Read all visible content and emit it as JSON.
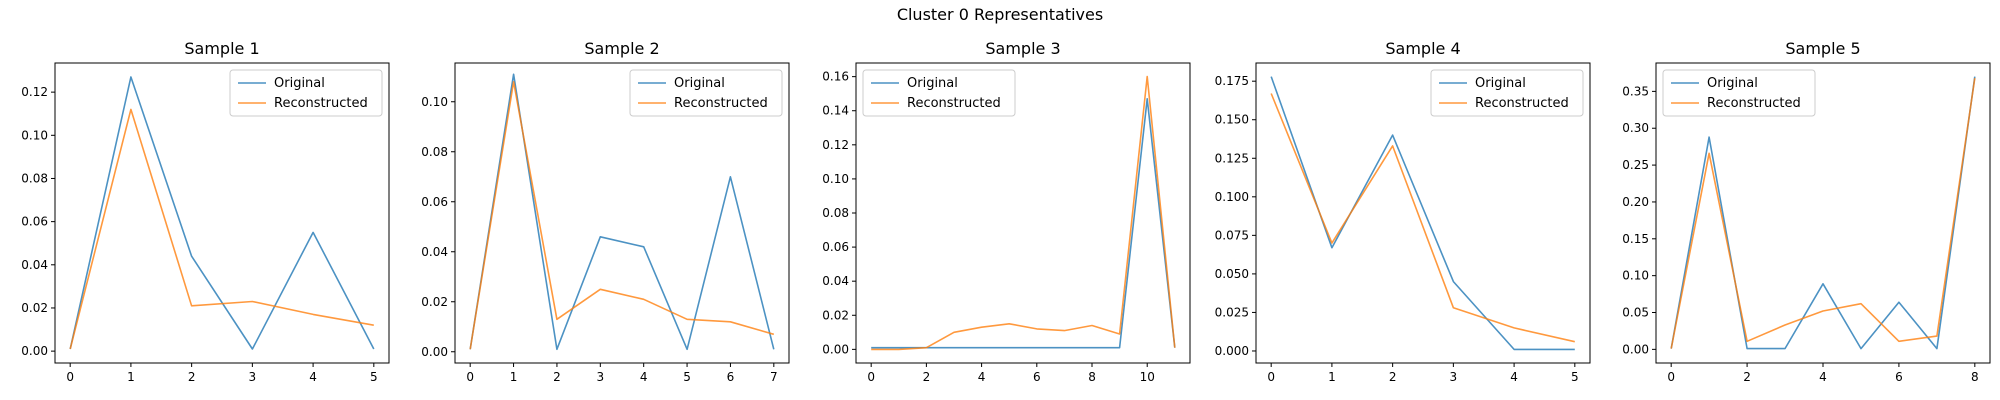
{
  "figure": {
    "title": "Cluster 0 Representatives"
  },
  "colors": {
    "original": "#1f77b4",
    "reconstructed": "#ff7f0e"
  },
  "chart_data": [
    {
      "type": "line",
      "title": "Sample 1",
      "x": [
        0,
        1,
        2,
        3,
        4,
        5
      ],
      "xticks": [
        "0",
        "1",
        "2",
        "3",
        "4",
        "5"
      ],
      "xlim": [
        -0.25,
        5.25
      ],
      "ylim": [
        -0.0055,
        0.1335
      ],
      "yticks": [
        "0.00",
        "0.02",
        "0.04",
        "0.06",
        "0.08",
        "0.10",
        "0.12"
      ],
      "ytick_values": [
        0,
        0.02,
        0.04,
        0.06,
        0.08,
        0.1,
        0.12
      ],
      "legend": "upper-right",
      "series": [
        {
          "name": "Original",
          "values": [
            0.001,
            0.127,
            0.044,
            0.001,
            0.055,
            0.001
          ]
        },
        {
          "name": "Reconstructed",
          "values": [
            0.001,
            0.112,
            0.021,
            0.023,
            0.017,
            0.012
          ]
        }
      ]
    },
    {
      "type": "line",
      "title": "Sample 2",
      "x": [
        0,
        1,
        2,
        3,
        4,
        5,
        6,
        7
      ],
      "xticks": [
        "0",
        "1",
        "2",
        "3",
        "4",
        "5",
        "6",
        "7"
      ],
      "xlim": [
        -0.35,
        7.35
      ],
      "ylim": [
        -0.0045,
        0.1155
      ],
      "yticks": [
        "0.00",
        "0.02",
        "0.04",
        "0.06",
        "0.08",
        "0.10"
      ],
      "ytick_values": [
        0,
        0.02,
        0.04,
        0.06,
        0.08,
        0.1
      ],
      "legend": "upper-right",
      "series": [
        {
          "name": "Original",
          "values": [
            0.001,
            0.111,
            0.001,
            0.046,
            0.042,
            0.001,
            0.07,
            0.001
          ]
        },
        {
          "name": "Reconstructed",
          "values": [
            0.001,
            0.108,
            0.013,
            0.025,
            0.021,
            0.013,
            0.012,
            0.007
          ]
        }
      ]
    },
    {
      "type": "line",
      "title": "Sample 3",
      "x": [
        0,
        1,
        2,
        3,
        4,
        5,
        6,
        7,
        8,
        9,
        10,
        11
      ],
      "xticks": [
        "0",
        "2",
        "4",
        "6",
        "8",
        "10"
      ],
      "xtick_values": [
        0,
        2,
        4,
        6,
        8,
        10
      ],
      "xlim": [
        -0.55,
        11.55
      ],
      "ylim": [
        -0.008,
        0.168
      ],
      "yticks": [
        "0.00",
        "0.02",
        "0.04",
        "0.06",
        "0.08",
        "0.10",
        "0.12",
        "0.14",
        "0.16"
      ],
      "ytick_values": [
        0,
        0.02,
        0.04,
        0.06,
        0.08,
        0.1,
        0.12,
        0.14,
        0.16
      ],
      "legend": "upper-left",
      "series": [
        {
          "name": "Original",
          "values": [
            0.001,
            0.001,
            0.001,
            0.001,
            0.001,
            0.001,
            0.001,
            0.001,
            0.001,
            0.001,
            0.147,
            0.001
          ]
        },
        {
          "name": "Reconstructed",
          "values": [
            0.0,
            0.0,
            0.001,
            0.01,
            0.013,
            0.015,
            0.012,
            0.011,
            0.014,
            0.009,
            0.16,
            0.001
          ]
        }
      ]
    },
    {
      "type": "line",
      "title": "Sample 4",
      "x": [
        0,
        1,
        2,
        3,
        4,
        5
      ],
      "xticks": [
        "0",
        "1",
        "2",
        "3",
        "4",
        "5"
      ],
      "xlim": [
        -0.25,
        5.25
      ],
      "ylim": [
        -0.0078,
        0.1868
      ],
      "yticks": [
        "0.000",
        "0.025",
        "0.050",
        "0.075",
        "0.100",
        "0.125",
        "0.150",
        "0.175"
      ],
      "ytick_values": [
        0,
        0.025,
        0.05,
        0.075,
        0.1,
        0.125,
        0.15,
        0.175
      ],
      "legend": "upper-right",
      "series": [
        {
          "name": "Original",
          "values": [
            0.178,
            0.067,
            0.14,
            0.045,
            0.001,
            0.001
          ]
        },
        {
          "name": "Reconstructed",
          "values": [
            0.167,
            0.07,
            0.133,
            0.028,
            0.015,
            0.006
          ]
        }
      ]
    },
    {
      "type": "line",
      "title": "Sample 5",
      "x": [
        0,
        1,
        2,
        3,
        4,
        5,
        6,
        7,
        8
      ],
      "xticks": [
        "0",
        "2",
        "4",
        "6",
        "8"
      ],
      "xtick_values": [
        0,
        2,
        4,
        6,
        8
      ],
      "xlim": [
        -0.4,
        8.4
      ],
      "ylim": [
        -0.0185,
        0.3885
      ],
      "yticks": [
        "0.00",
        "0.05",
        "0.10",
        "0.15",
        "0.20",
        "0.25",
        "0.30",
        "0.35"
      ],
      "ytick_values": [
        0,
        0.05,
        0.1,
        0.15,
        0.2,
        0.25,
        0.3,
        0.35
      ],
      "legend": "upper-left",
      "series": [
        {
          "name": "Original",
          "values": [
            0.001,
            0.288,
            0.001,
            0.001,
            0.089,
            0.001,
            0.064,
            0.001,
            0.37
          ]
        },
        {
          "name": "Reconstructed",
          "values": [
            0.001,
            0.266,
            0.011,
            0.033,
            0.052,
            0.062,
            0.011,
            0.018,
            0.368
          ]
        }
      ]
    }
  ]
}
